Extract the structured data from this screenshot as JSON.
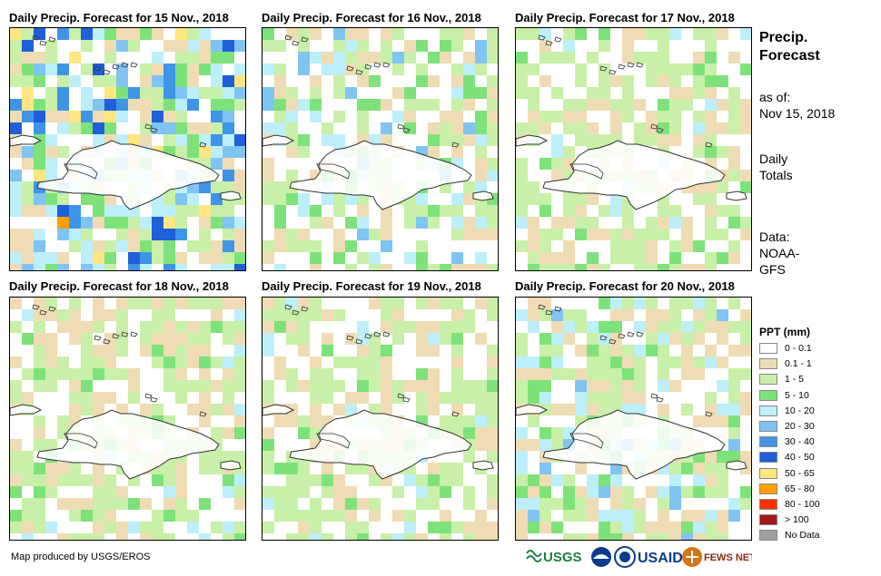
{
  "panels": [
    {
      "title": "Daily Precip. Forecast for 15 Nov., 2018",
      "seed": 15
    },
    {
      "title": "Daily Precip. Forecast for 16 Nov., 2018",
      "seed": 16
    },
    {
      "title": "Daily Precip. Forecast for 17 Nov., 2018",
      "seed": 17
    },
    {
      "title": "Daily Precip. Forecast for 18 Nov., 2018",
      "seed": 18
    },
    {
      "title": "Daily Precip. Forecast for 19 Nov., 2018",
      "seed": 19
    },
    {
      "title": "Daily Precip. Forecast for 20 Nov., 2018",
      "seed": 20
    }
  ],
  "side": {
    "title_line1": "Precip.",
    "title_line2": "Forecast",
    "asof_line1": "as of:",
    "asof_line2": "Nov 15, 2018",
    "totals_line1": "Daily",
    "totals_line2": "Totals",
    "data_line1": "Data:",
    "data_line2": "NOAA-",
    "data_line3": "GFS"
  },
  "legend": {
    "title": "PPT (mm)",
    "items": [
      {
        "label": "0 - 0.1",
        "color": "#ffffff"
      },
      {
        "label": "0.1 - 1",
        "color": "#f0dcb4"
      },
      {
        "label": "1 - 5",
        "color": "#c8f0a8"
      },
      {
        "label": "5 - 10",
        "color": "#7ee27a"
      },
      {
        "label": "10 - 20",
        "color": "#bdeffa"
      },
      {
        "label": "20 - 30",
        "color": "#7fc4f2"
      },
      {
        "label": "30 - 40",
        "color": "#3e95e8"
      },
      {
        "label": "40 - 50",
        "color": "#1f5fd8"
      },
      {
        "label": "50 - 65",
        "color": "#ffe680"
      },
      {
        "label": "65 - 80",
        "color": "#ffa000"
      },
      {
        "label": "80 - 100",
        "color": "#ff3000"
      },
      {
        "label": "> 100",
        "color": "#a01818"
      },
      {
        "label": "No Data",
        "color": "#a0a0a0"
      }
    ]
  },
  "footer": {
    "credit": "Map produced by USGS/EROS",
    "logo_usgs": "USGS",
    "logo_usaid": "USAID",
    "logo_fewsnet": "FEWS NET"
  }
}
